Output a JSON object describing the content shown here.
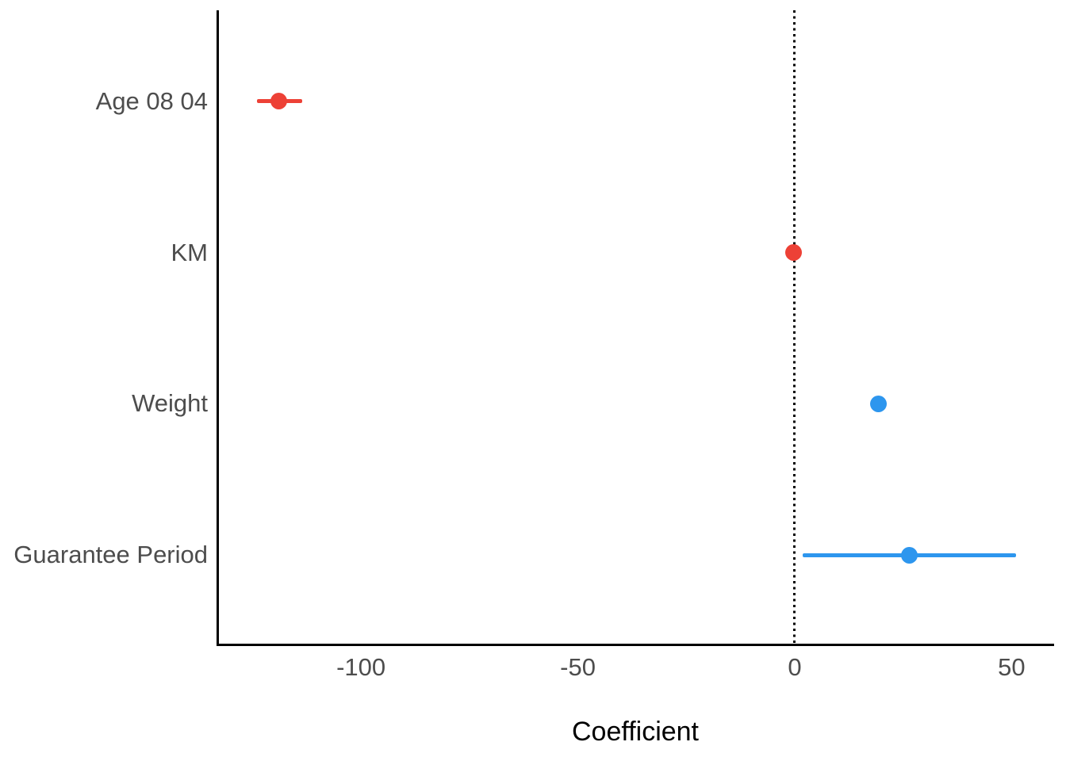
{
  "chart_data": {
    "type": "scatter",
    "subtype": "coefficient-dot-whisker",
    "title": "",
    "xlabel": "Coefficient",
    "ylabel": "",
    "legend": "none",
    "grid": "off",
    "background": "#FFFFFF",
    "axis_style": {
      "axis_line_color": "#000000",
      "axis_text_color": "#4D4D4D",
      "axis_title_color": "#000000",
      "reference_line_style": "dotted",
      "reference_line_color": "#000000"
    },
    "reference_line_x": 0,
    "xlim": [
      -133.3,
      59.8
    ],
    "x_ticks": [
      {
        "value": -100,
        "label": "-100"
      },
      {
        "value": -50,
        "label": "-50"
      },
      {
        "value": 0,
        "label": "0"
      },
      {
        "value": 50,
        "label": "50"
      }
    ],
    "categories": [
      "Age 08 04",
      "KM",
      "Weight",
      "Guarantee Period"
    ],
    "colors": {
      "negative": "#ED4136",
      "positive": "#2D96EE"
    },
    "series": [
      {
        "name": "Age 08 04",
        "estimate": -119.0,
        "ci_low": -124.0,
        "ci_high": -113.5,
        "sign": "negative",
        "color": "#ED4136"
      },
      {
        "name": "KM",
        "estimate": -0.3,
        "ci_low": -0.3,
        "ci_high": -0.3,
        "sign": "negative",
        "color": "#ED4136"
      },
      {
        "name": "Weight",
        "estimate": 19.3,
        "ci_low": 19.3,
        "ci_high": 19.3,
        "sign": "positive",
        "color": "#2D96EE"
      },
      {
        "name": "Guarantee Period",
        "estimate": 26.5,
        "ci_low": 1.9,
        "ci_high": 51.0,
        "sign": "positive",
        "color": "#2D96EE"
      }
    ]
  }
}
